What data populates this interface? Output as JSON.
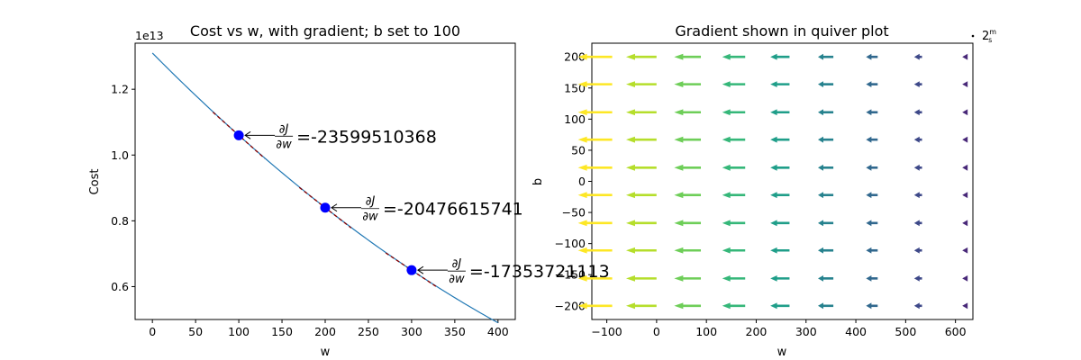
{
  "chart_data": [
    {
      "type": "line",
      "title": "Cost vs w, with gradient; b set to 100",
      "xlabel": "w",
      "ylabel": "Cost",
      "offset_label": "1e13",
      "xlim": [
        -20,
        420
      ],
      "ylim": [
        0.5,
        1.34
      ],
      "xticks": [
        0,
        50,
        100,
        150,
        200,
        250,
        300,
        350,
        400
      ],
      "yticks": [
        0.6,
        0.8,
        1.0,
        1.2
      ],
      "ytick_labels": [
        "0.6",
        "0.8",
        "1.0",
        "1.2"
      ],
      "line_color": "#1f77b4",
      "marker_color": "#0000ff",
      "tangent_color": "#8b0000",
      "curve": {
        "x": [
          0,
          100,
          200,
          300,
          400
        ],
        "y": [
          1.31,
          1.06,
          0.84,
          0.65,
          0.49
        ]
      },
      "points": [
        {
          "w": 100,
          "cost": 1.06,
          "derivative_label": "=-23599510368"
        },
        {
          "w": 200,
          "cost": 0.84,
          "derivative_label": "=-20476615741"
        },
        {
          "w": 300,
          "cost": 0.65,
          "derivative_label": "=-17353721113"
        }
      ],
      "derivative_symbol": {
        "num": "∂J",
        "den": "∂w"
      }
    },
    {
      "type": "quiver",
      "title": "Gradient shown in quiver plot",
      "xlabel": "w",
      "ylabel": "b",
      "xlim": [
        -130,
        635
      ],
      "ylim": [
        -222,
        222
      ],
      "xticks": [
        -100,
        0,
        100,
        200,
        300,
        400,
        500,
        600
      ],
      "yticks": [
        -200,
        -150,
        -100,
        -50,
        0,
        50,
        100,
        150,
        200
      ],
      "grid_w": [
        -100,
        -11,
        78,
        167,
        256,
        344,
        433,
        522,
        611
      ],
      "grid_b": [
        -200,
        -156,
        -111,
        -67,
        -22,
        22,
        67,
        111,
        156,
        200
      ],
      "arrow_lengths": [
        1.0,
        0.89,
        0.78,
        0.67,
        0.56,
        0.45,
        0.34,
        0.23,
        0.12
      ],
      "arrow_colors": [
        "#fde725",
        "#b5de2b",
        "#6ece58",
        "#35b779",
        "#1f9e89",
        "#26828e",
        "#31688e",
        "#3e4989",
        "#482878"
      ],
      "key_label": "2m/s"
    }
  ]
}
